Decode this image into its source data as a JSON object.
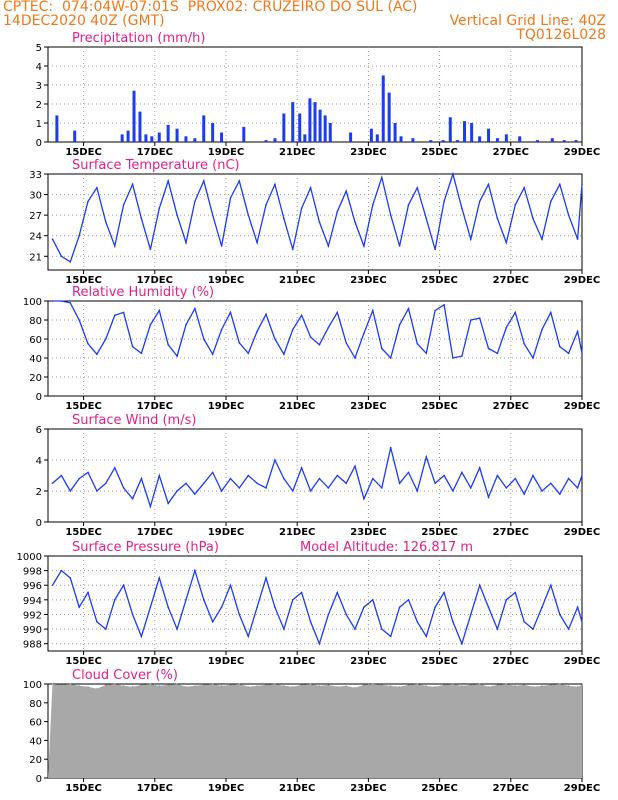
{
  "header": {
    "line1_left": "CPTEC:  074:04W-07:01S  PROX02: CRUZEIRO DO SUL (AC)",
    "line2_left": "14DEC2020 40Z (GMT)",
    "line2_right": "Vertical Grid Line: 40Z",
    "line3_right": "TQ0126L028"
  },
  "colors": {
    "header": "#f07818",
    "title": "#e0208a",
    "series": "#1c3cf0",
    "cloud": "#a8a8a8"
  },
  "date_labels": [
    "15DEC",
    "17DEC",
    "19DEC",
    "21DEC",
    "23DEC",
    "25DEC",
    "27DEC",
    "29DEC"
  ],
  "chart_data": [
    {
      "type": "bar",
      "title": "Precipitation (mm/h)",
      "yticks": [
        "0",
        "1",
        "2",
        "3",
        "4",
        "5"
      ],
      "ylim": [
        0,
        5
      ],
      "x": [
        "14DEC",
        "14DEC",
        "16DEC",
        "16DEC",
        "16DEC",
        "16DEC",
        "16DEC",
        "16DEC",
        "17DEC",
        "17DEC",
        "17DEC",
        "17DEC",
        "18DEC",
        "18DEC",
        "18DEC",
        "18DEC",
        "19DEC",
        "20DEC",
        "20DEC",
        "20DEC",
        "20DEC",
        "21DEC",
        "21DEC",
        "21DEC",
        "21DEC",
        "21DEC",
        "21DEC",
        "21DEC",
        "22DEC",
        "23DEC",
        "23DEC",
        "23DEC",
        "23DEC",
        "23DEC",
        "23DEC",
        "24DEC",
        "24DEC",
        "25DEC",
        "25DEC",
        "25DEC",
        "25DEC",
        "25DEC",
        "26DEC",
        "26DEC",
        "26DEC",
        "26DEC",
        "27DEC",
        "27DEC",
        "28DEC",
        "28DEC",
        "28DEC"
      ],
      "values": [
        1.4,
        0.6,
        0.4,
        0.6,
        2.7,
        1.6,
        0.4,
        0.3,
        0.5,
        0.9,
        0.7,
        0.3,
        0.2,
        1.4,
        1.0,
        0.5,
        0.8,
        0.1,
        0.2,
        1.5,
        2.1,
        1.5,
        0.4,
        2.3,
        2.1,
        1.7,
        1.4,
        1.0,
        0.5,
        0.7,
        0.4,
        3.5,
        2.6,
        1.0,
        0.3,
        0.2,
        0.1,
        0.1,
        1.3,
        0.1,
        1.1,
        1.0,
        0.3,
        0.7,
        0.2,
        0.4,
        0.3,
        0.1,
        0.2,
        0.1,
        0.1
      ]
    },
    {
      "type": "line",
      "title": "Surface Temperature (nC)",
      "yticks": [
        "21",
        "24",
        "27",
        "30",
        "33"
      ],
      "ylim": [
        19,
        33
      ],
      "x": [
        "14DEC",
        "14DEC",
        "14DEC",
        "14DEC",
        "15DEC",
        "15DEC",
        "15DEC",
        "15DEC",
        "16DEC",
        "16DEC",
        "16DEC",
        "16DEC",
        "17DEC",
        "17DEC",
        "17DEC",
        "17DEC",
        "18DEC",
        "18DEC",
        "18DEC",
        "18DEC",
        "19DEC",
        "19DEC",
        "19DEC",
        "19DEC",
        "20DEC",
        "20DEC",
        "20DEC",
        "20DEC",
        "21DEC",
        "21DEC",
        "21DEC",
        "21DEC",
        "22DEC",
        "22DEC",
        "22DEC",
        "22DEC",
        "23DEC",
        "23DEC",
        "23DEC",
        "23DEC",
        "24DEC",
        "24DEC",
        "24DEC",
        "24DEC",
        "25DEC",
        "25DEC",
        "25DEC",
        "25DEC",
        "26DEC",
        "26DEC",
        "26DEC",
        "26DEC",
        "27DEC",
        "27DEC",
        "27DEC",
        "27DEC",
        "28DEC",
        "28DEC",
        "28DEC",
        "28DEC",
        "29DEC"
      ],
      "values": [
        23.5,
        21.0,
        20.2,
        24.0,
        29.0,
        31.0,
        26.0,
        22.5,
        28.5,
        31.5,
        26.5,
        22.0,
        28.0,
        32.0,
        27.0,
        23.0,
        29.0,
        32.0,
        27.0,
        22.5,
        29.5,
        32.0,
        27.0,
        23.0,
        28.5,
        31.5,
        26.5,
        22.0,
        28.0,
        31.0,
        26.0,
        22.5,
        27.5,
        30.5,
        26.0,
        22.5,
        28.5,
        32.5,
        27.0,
        22.5,
        28.5,
        31.0,
        26.5,
        22.0,
        29.0,
        33.0,
        28.0,
        23.5,
        29.0,
        31.5,
        26.5,
        23.0,
        28.5,
        31.0,
        26.5,
        23.5,
        29.0,
        31.5,
        27.0,
        23.5,
        31.5
      ]
    },
    {
      "type": "line",
      "title": "Relative Humidity (%)",
      "yticks": [
        "0",
        "20",
        "40",
        "60",
        "80",
        "100"
      ],
      "ylim": [
        0,
        100
      ],
      "x": [
        "14DEC",
        "14DEC",
        "14DEC",
        "14DEC",
        "15DEC",
        "15DEC",
        "15DEC",
        "15DEC",
        "16DEC",
        "16DEC",
        "16DEC",
        "16DEC",
        "17DEC",
        "17DEC",
        "17DEC",
        "17DEC",
        "18DEC",
        "18DEC",
        "18DEC",
        "18DEC",
        "19DEC",
        "19DEC",
        "19DEC",
        "19DEC",
        "20DEC",
        "20DEC",
        "20DEC",
        "20DEC",
        "21DEC",
        "21DEC",
        "21DEC",
        "21DEC",
        "22DEC",
        "22DEC",
        "22DEC",
        "22DEC",
        "23DEC",
        "23DEC",
        "23DEC",
        "23DEC",
        "24DEC",
        "24DEC",
        "24DEC",
        "24DEC",
        "25DEC",
        "25DEC",
        "25DEC",
        "25DEC",
        "26DEC",
        "26DEC",
        "26DEC",
        "26DEC",
        "27DEC",
        "27DEC",
        "27DEC",
        "27DEC",
        "28DEC",
        "28DEC",
        "28DEC",
        "28DEC",
        "29DEC"
      ],
      "values": [
        100,
        100,
        98,
        80,
        55,
        44,
        60,
        85,
        88,
        52,
        45,
        75,
        90,
        54,
        42,
        75,
        92,
        60,
        44,
        70,
        88,
        56,
        45,
        68,
        86,
        60,
        44,
        70,
        85,
        62,
        54,
        72,
        88,
        56,
        40,
        66,
        90,
        50,
        40,
        75,
        92,
        55,
        45,
        90,
        96,
        40,
        42,
        80,
        82,
        50,
        45,
        72,
        88,
        55,
        40,
        70,
        88,
        52,
        45,
        68,
        45
      ]
    },
    {
      "type": "line",
      "title": "Surface Wind (m/s)",
      "yticks": [
        "0",
        "2",
        "4",
        "6"
      ],
      "ylim": [
        0,
        6
      ],
      "x": [
        "14DEC",
        "14DEC",
        "14DEC",
        "14DEC",
        "15DEC",
        "15DEC",
        "15DEC",
        "15DEC",
        "16DEC",
        "16DEC",
        "16DEC",
        "16DEC",
        "17DEC",
        "17DEC",
        "17DEC",
        "17DEC",
        "18DEC",
        "18DEC",
        "18DEC",
        "18DEC",
        "19DEC",
        "19DEC",
        "19DEC",
        "19DEC",
        "20DEC",
        "20DEC",
        "20DEC",
        "20DEC",
        "21DEC",
        "21DEC",
        "21DEC",
        "21DEC",
        "22DEC",
        "22DEC",
        "22DEC",
        "22DEC",
        "23DEC",
        "23DEC",
        "23DEC",
        "23DEC",
        "24DEC",
        "24DEC",
        "24DEC",
        "24DEC",
        "25DEC",
        "25DEC",
        "25DEC",
        "25DEC",
        "26DEC",
        "26DEC",
        "26DEC",
        "26DEC",
        "27DEC",
        "27DEC",
        "27DEC",
        "27DEC",
        "28DEC",
        "28DEC",
        "28DEC",
        "28DEC",
        "29DEC"
      ],
      "values": [
        2.5,
        3.0,
        2.0,
        2.8,
        3.2,
        2.0,
        2.5,
        3.5,
        2.2,
        1.5,
        2.8,
        1.0,
        3.0,
        1.2,
        2.0,
        2.5,
        1.8,
        2.5,
        3.2,
        2.0,
        2.8,
        2.2,
        3.0,
        2.5,
        2.2,
        4.0,
        2.8,
        2.0,
        3.5,
        2.0,
        2.8,
        2.2,
        3.0,
        2.5,
        3.6,
        1.5,
        2.8,
        2.2,
        4.8,
        2.5,
        3.2,
        2.0,
        4.2,
        2.5,
        3.0,
        2.0,
        3.2,
        2.2,
        3.5,
        1.6,
        3.0,
        2.2,
        2.8,
        1.8,
        3.0,
        2.0,
        2.5,
        1.8,
        2.8,
        2.2,
        3.0
      ]
    },
    {
      "type": "line",
      "title": "Surface Pressure (hPa)",
      "annotation": "Model Altitude: 126.817 m",
      "yticks": [
        "988",
        "990",
        "992",
        "994",
        "996",
        "998",
        "1000"
      ],
      "ylim": [
        987,
        1000
      ],
      "x": [
        "14DEC",
        "14DEC",
        "14DEC",
        "14DEC",
        "15DEC",
        "15DEC",
        "15DEC",
        "15DEC",
        "16DEC",
        "16DEC",
        "16DEC",
        "16DEC",
        "17DEC",
        "17DEC",
        "17DEC",
        "17DEC",
        "18DEC",
        "18DEC",
        "18DEC",
        "18DEC",
        "19DEC",
        "19DEC",
        "19DEC",
        "19DEC",
        "20DEC",
        "20DEC",
        "20DEC",
        "20DEC",
        "21DEC",
        "21DEC",
        "21DEC",
        "21DEC",
        "22DEC",
        "22DEC",
        "22DEC",
        "22DEC",
        "23DEC",
        "23DEC",
        "23DEC",
        "23DEC",
        "24DEC",
        "24DEC",
        "24DEC",
        "24DEC",
        "25DEC",
        "25DEC",
        "25DEC",
        "25DEC",
        "26DEC",
        "26DEC",
        "26DEC",
        "26DEC",
        "27DEC",
        "27DEC",
        "27DEC",
        "27DEC",
        "28DEC",
        "28DEC",
        "28DEC",
        "28DEC",
        "29DEC"
      ],
      "values": [
        996,
        998,
        997,
        993,
        995,
        991,
        990,
        994,
        996,
        992,
        989,
        993,
        997,
        993,
        990,
        994,
        998,
        994,
        991,
        993,
        996,
        992,
        989,
        993,
        997,
        993,
        990,
        994,
        995,
        991,
        988,
        992,
        995,
        992,
        990,
        993,
        994,
        990,
        989,
        993,
        994,
        991,
        989,
        993,
        995,
        991,
        988,
        992,
        996,
        993,
        990,
        994,
        995,
        991,
        990,
        993,
        996,
        992,
        990,
        993,
        991
      ]
    },
    {
      "type": "area",
      "title": "Cloud Cover (%)",
      "yticks": [
        "0",
        "20",
        "40",
        "60",
        "80",
        "100"
      ],
      "ylim": [
        0,
        100
      ],
      "x": [
        "14DEC",
        "14DEC",
        "14DEC",
        "14DEC",
        "15DEC",
        "15DEC",
        "15DEC",
        "15DEC",
        "16DEC",
        "16DEC",
        "16DEC",
        "16DEC",
        "17DEC",
        "17DEC",
        "17DEC",
        "17DEC",
        "18DEC",
        "18DEC",
        "18DEC",
        "18DEC",
        "19DEC",
        "19DEC",
        "19DEC",
        "19DEC",
        "20DEC",
        "20DEC",
        "20DEC",
        "20DEC",
        "21DEC",
        "21DEC",
        "21DEC",
        "21DEC",
        "22DEC",
        "22DEC",
        "22DEC",
        "22DEC",
        "23DEC",
        "23DEC",
        "23DEC",
        "23DEC",
        "24DEC",
        "24DEC",
        "24DEC",
        "24DEC",
        "25DEC",
        "25DEC",
        "25DEC",
        "25DEC",
        "26DEC",
        "26DEC",
        "26DEC",
        "26DEC",
        "27DEC",
        "27DEC",
        "27DEC",
        "27DEC",
        "28DEC",
        "28DEC",
        "28DEC",
        "28DEC",
        "29DEC"
      ],
      "values": [
        100,
        99,
        100,
        98,
        97,
        95,
        99,
        100,
        98,
        97,
        99,
        100,
        98,
        99,
        100,
        97,
        98,
        99,
        100,
        98,
        99,
        100,
        97,
        98,
        99,
        100,
        98,
        97,
        99,
        100,
        98,
        99,
        97,
        98,
        96,
        99,
        100,
        99,
        98,
        97,
        99,
        100,
        98,
        97,
        99,
        100,
        98,
        99,
        100,
        97,
        99,
        100,
        98,
        99,
        97,
        98,
        99,
        100,
        98,
        97,
        99
      ]
    }
  ]
}
